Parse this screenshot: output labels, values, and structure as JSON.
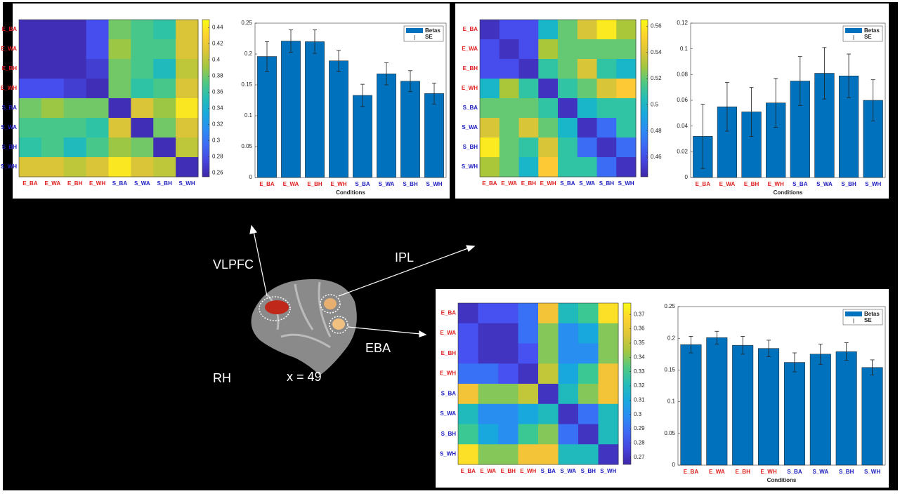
{
  "chart_data": [
    {
      "type": "heatmap",
      "x": [
        "E_BA",
        "E_WA",
        "E_BH",
        "E_WH",
        "S_BA",
        "S_WA",
        "S_BH",
        "S_WH"
      ],
      "y": [
        "E_BA",
        "E_WA",
        "E_BH",
        "E_WH",
        "S_BA",
        "S_WA",
        "S_BH",
        "S_WH"
      ],
      "category_colors": [
        "#e02020",
        "#e02020",
        "#e02020",
        "#e02020",
        "#2020c0",
        "#2020c0",
        "#2020c0",
        "#2020c0"
      ],
      "values": [
        [
          0.26,
          0.26,
          0.26,
          0.28,
          0.38,
          0.37,
          0.36,
          0.41
        ],
        [
          0.26,
          0.26,
          0.26,
          0.28,
          0.39,
          0.37,
          0.37,
          0.41
        ],
        [
          0.26,
          0.26,
          0.26,
          0.27,
          0.38,
          0.37,
          0.35,
          0.4
        ],
        [
          0.28,
          0.28,
          0.27,
          0.26,
          0.38,
          0.36,
          0.37,
          0.41
        ],
        [
          0.38,
          0.39,
          0.38,
          0.38,
          0.26,
          0.41,
          0.39,
          0.44
        ],
        [
          0.37,
          0.37,
          0.37,
          0.36,
          0.41,
          0.26,
          0.38,
          0.41
        ],
        [
          0.36,
          0.37,
          0.35,
          0.37,
          0.39,
          0.38,
          0.26,
          0.4
        ],
        [
          0.41,
          0.41,
          0.4,
          0.41,
          0.44,
          0.41,
          0.4,
          0.26
        ]
      ],
      "colormap": "parula",
      "clim": [
        0.255,
        0.45
      ],
      "cticks": [
        0.26,
        0.28,
        0.3,
        0.32,
        0.34,
        0.36,
        0.38,
        0.4,
        0.42,
        0.44
      ]
    },
    {
      "type": "bar",
      "categories": [
        "E_BA",
        "E_WA",
        "E_BH",
        "E_WH",
        "S_BA",
        "S_WA",
        "S_BH",
        "S_WH"
      ],
      "category_colors": [
        "#e02020",
        "#e02020",
        "#e02020",
        "#e02020",
        "#2020c0",
        "#2020c0",
        "#2020c0",
        "#2020c0"
      ],
      "series": [
        {
          "name": "Betas",
          "color": "#0072bd",
          "values": [
            0.196,
            0.221,
            0.22,
            0.189,
            0.133,
            0.168,
            0.156,
            0.136
          ],
          "errors": [
            0.024,
            0.018,
            0.019,
            0.017,
            0.018,
            0.018,
            0.017,
            0.017
          ],
          "error_name": "SE"
        }
      ],
      "xlabel": "Conditions",
      "ylim": [
        0,
        0.25
      ],
      "yticks": [
        0,
        0.05,
        0.1,
        0.15,
        0.2,
        0.25
      ],
      "legend": "top-right"
    },
    {
      "type": "heatmap",
      "x": [
        "E_BA",
        "E_WA",
        "E_BH",
        "E_WH",
        "S_BA",
        "S_WA",
        "S_BH",
        "S_WH"
      ],
      "y": [
        "E_BA",
        "E_WA",
        "E_BH",
        "E_WH",
        "S_BA",
        "S_WA",
        "S_BH",
        "S_WH"
      ],
      "category_colors": [
        "#e02020",
        "#e02020",
        "#e02020",
        "#e02020",
        "#2020c0",
        "#2020c0",
        "#2020c0",
        "#2020c0"
      ],
      "values": [
        [
          0.45,
          0.46,
          0.46,
          0.5,
          0.52,
          0.54,
          0.56,
          0.53
        ],
        [
          0.46,
          0.45,
          0.46,
          0.53,
          0.52,
          0.52,
          0.52,
          0.52
        ],
        [
          0.46,
          0.46,
          0.45,
          0.51,
          0.52,
          0.54,
          0.51,
          0.5
        ],
        [
          0.5,
          0.53,
          0.51,
          0.45,
          0.51,
          0.52,
          0.54,
          0.55
        ],
        [
          0.52,
          0.52,
          0.52,
          0.51,
          0.45,
          0.5,
          0.51,
          0.51
        ],
        [
          0.54,
          0.52,
          0.54,
          0.52,
          0.5,
          0.45,
          0.47,
          0.51
        ],
        [
          0.56,
          0.52,
          0.51,
          0.54,
          0.51,
          0.47,
          0.45,
          0.47
        ],
        [
          0.53,
          0.52,
          0.5,
          0.55,
          0.51,
          0.51,
          0.47,
          0.45
        ]
      ],
      "colormap": "parula",
      "clim": [
        0.445,
        0.565
      ],
      "cticks": [
        0.46,
        0.48,
        0.5,
        0.52,
        0.54,
        0.56
      ]
    },
    {
      "type": "bar",
      "categories": [
        "E_BA",
        "E_WA",
        "E_BH",
        "E_WH",
        "S_BA",
        "S_WA",
        "S_BH",
        "S_WH"
      ],
      "category_colors": [
        "#e02020",
        "#e02020",
        "#e02020",
        "#e02020",
        "#2020c0",
        "#2020c0",
        "#2020c0",
        "#2020c0"
      ],
      "series": [
        {
          "name": "Betas",
          "color": "#0072bd",
          "values": [
            0.032,
            0.055,
            0.051,
            0.058,
            0.075,
            0.081,
            0.079,
            0.06
          ],
          "errors": [
            0.025,
            0.019,
            0.019,
            0.019,
            0.019,
            0.02,
            0.017,
            0.016
          ],
          "error_name": "SE"
        }
      ],
      "xlabel": "Conditions",
      "ylim": [
        0,
        0.12
      ],
      "yticks": [
        0,
        0.02,
        0.04,
        0.06,
        0.08,
        0.1,
        0.12
      ],
      "legend": "top-right"
    },
    {
      "type": "heatmap",
      "x": [
        "E_BA",
        "E_WA",
        "E_BH",
        "E_WH",
        "S_BA",
        "S_WA",
        "S_BH",
        "S_WH"
      ],
      "y": [
        "E_BA",
        "E_WA",
        "E_BH",
        "E_WH",
        "S_BA",
        "S_WA",
        "S_BH",
        "S_WH"
      ],
      "category_colors": [
        "#e02020",
        "#e02020",
        "#e02020",
        "#e02020",
        "#2020c0",
        "#2020c0",
        "#2020c0",
        "#2020c0"
      ],
      "values": [
        [
          0.27,
          0.28,
          0.28,
          0.29,
          0.36,
          0.32,
          0.33,
          0.37
        ],
        [
          0.28,
          0.27,
          0.27,
          0.29,
          0.34,
          0.3,
          0.31,
          0.34
        ],
        [
          0.28,
          0.27,
          0.27,
          0.28,
          0.34,
          0.3,
          0.3,
          0.34
        ],
        [
          0.29,
          0.29,
          0.28,
          0.27,
          0.35,
          0.31,
          0.33,
          0.36
        ],
        [
          0.36,
          0.34,
          0.34,
          0.35,
          0.27,
          0.32,
          0.34,
          0.36
        ],
        [
          0.32,
          0.3,
          0.3,
          0.31,
          0.32,
          0.27,
          0.29,
          0.32
        ],
        [
          0.33,
          0.31,
          0.3,
          0.33,
          0.34,
          0.29,
          0.27,
          0.32
        ],
        [
          0.37,
          0.34,
          0.34,
          0.36,
          0.36,
          0.32,
          0.32,
          0.27
        ]
      ],
      "colormap": "parula",
      "clim": [
        0.265,
        0.378
      ],
      "cticks": [
        0.27,
        0.28,
        0.29,
        0.3,
        0.31,
        0.32,
        0.33,
        0.34,
        0.35,
        0.36,
        0.37
      ]
    },
    {
      "type": "bar",
      "categories": [
        "E_BA",
        "E_WA",
        "E_BH",
        "E_WH",
        "S_BA",
        "S_WA",
        "S_BH",
        "S_WH"
      ],
      "category_colors": [
        "#e02020",
        "#e02020",
        "#e02020",
        "#e02020",
        "#2020c0",
        "#2020c0",
        "#2020c0",
        "#2020c0"
      ],
      "series": [
        {
          "name": "Betas",
          "color": "#0072bd",
          "values": [
            0.19,
            0.201,
            0.189,
            0.184,
            0.162,
            0.175,
            0.179,
            0.154
          ],
          "errors": [
            0.013,
            0.01,
            0.014,
            0.013,
            0.015,
            0.016,
            0.014,
            0.012
          ],
          "error_name": "SE"
        }
      ],
      "xlabel": "Conditions",
      "ylim": [
        0,
        0.25
      ],
      "yticks": [
        0,
        0.05,
        0.1,
        0.15,
        0.2,
        0.25
      ],
      "legend": "top-right"
    }
  ],
  "annotations": [
    "VLPFC",
    "IPL",
    "EBA",
    "RH",
    "x = 49"
  ]
}
